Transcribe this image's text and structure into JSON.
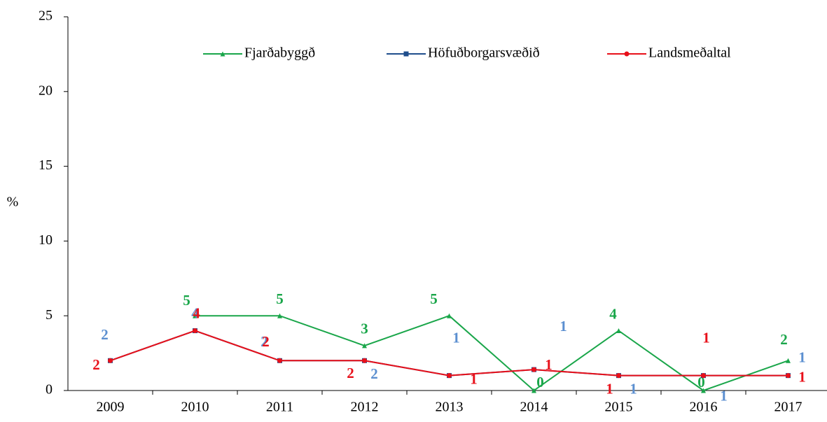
{
  "chart_data": {
    "type": "line",
    "ylabel": "%",
    "categories": [
      "2009",
      "2010",
      "2011",
      "2012",
      "2013",
      "2014",
      "2015",
      "2016",
      "2017"
    ],
    "series": [
      {
        "name": "Fjarðabyggð",
        "color": "#1aa64a",
        "marker": "triangle",
        "values": [
          null,
          5,
          5,
          3,
          5,
          0,
          4,
          0,
          2
        ]
      },
      {
        "name": "Höfuðborgarsvæðið",
        "color": "#1f4e8c",
        "label_color": "#5b8fd0",
        "marker": "square",
        "values": [
          2,
          4,
          2,
          2,
          1,
          1.4,
          1,
          1,
          1
        ],
        "value_labels": [
          "2",
          "4",
          "2",
          "2",
          "1",
          "1",
          "1",
          "1",
          "1"
        ]
      },
      {
        "name": "Landsmeðaltal",
        "color": "#e8101a",
        "marker": "circle",
        "values": [
          2,
          4,
          2,
          2,
          1,
          1.4,
          1,
          1,
          1
        ],
        "value_labels": [
          "2",
          "4",
          "2",
          "2",
          "1",
          "1",
          "1",
          "1",
          "1"
        ]
      }
    ],
    "ylim": [
      0,
      25
    ],
    "yticks": [
      0,
      5,
      10,
      15,
      20,
      25
    ],
    "grid": false,
    "legend": "top"
  }
}
